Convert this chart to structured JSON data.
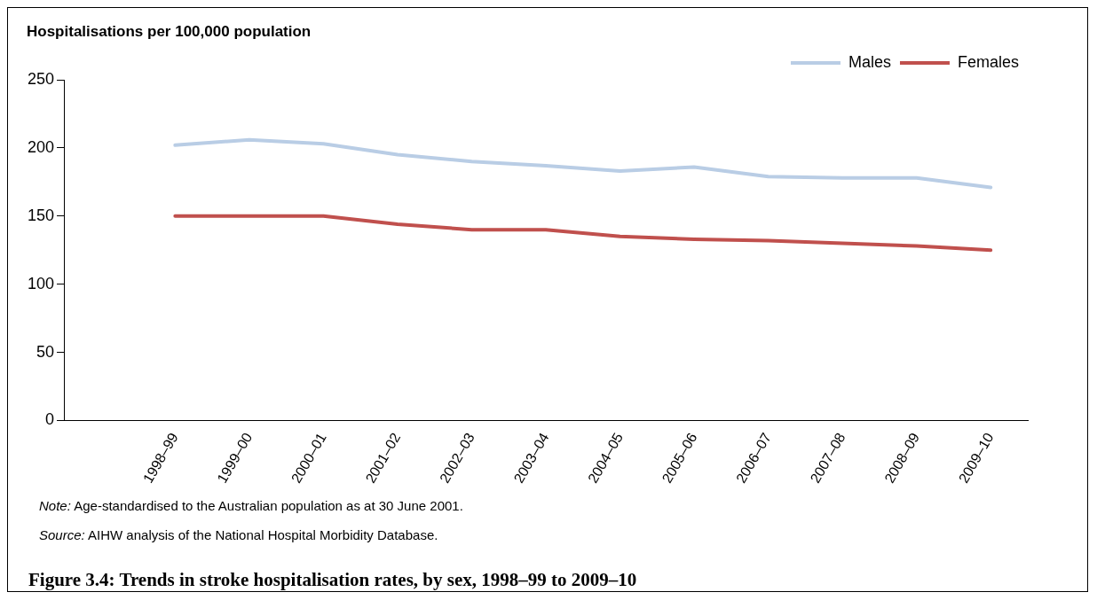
{
  "chart_data": {
    "type": "line",
    "title": "Figure 3.4: Trends in stroke hospitalisation rates, by sex, 1998–99 to 2009–10",
    "ylabel": "Hospitalisations per 100,000 population",
    "categories": [
      null,
      "1998–99",
      "1999–00",
      "2000–01",
      "2001–02",
      "2002–03",
      "2003–04",
      "2004–05",
      "2005–06",
      "2006–07",
      "2007–08",
      "2008–09",
      "2009–10"
    ],
    "series": [
      {
        "name": "Males",
        "color": "#b9cde5",
        "values": [
          null,
          202,
          206,
          203,
          195,
          190,
          187,
          183,
          186,
          179,
          178,
          178,
          171
        ]
      },
      {
        "name": "Females",
        "color": "#c0504d",
        "values": [
          null,
          150,
          150,
          150,
          144,
          140,
          140,
          135,
          133,
          132,
          130,
          128,
          125
        ]
      }
    ],
    "ylim": [
      0,
      250
    ],
    "yticks": [
      0,
      50,
      100,
      150,
      200,
      250
    ],
    "grid": false,
    "legend": "top right",
    "marker": "none",
    "line_style": "solid",
    "annotations": [
      "Note: Age-standardised to the Australian population as at 30 June 2001.",
      "Source: AIHW analysis of the National Hospital Morbidity Database."
    ]
  }
}
